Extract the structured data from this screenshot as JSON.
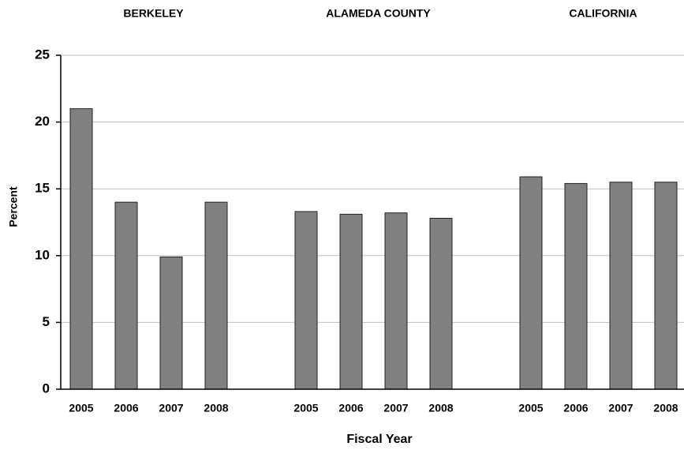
{
  "chart_data": {
    "type": "bar",
    "y_label": "Percent",
    "x_label": "Fiscal Year",
    "groups": [
      {
        "name": "BERKELEY",
        "categories": [
          "2005",
          "2006",
          "2007",
          "2008"
        ],
        "values": [
          21,
          14,
          9.9,
          14
        ]
      },
      {
        "name": "ALAMEDA COUNTY",
        "categories": [
          "2005",
          "2006",
          "2007",
          "2008"
        ],
        "values": [
          13.3,
          13.1,
          13.2,
          12.8
        ]
      },
      {
        "name": "CALIFORNIA",
        "categories": [
          "2005",
          "2006",
          "2007",
          "2008"
        ],
        "values": [
          15.9,
          15.4,
          15.5,
          15.5
        ]
      }
    ],
    "color": "#808080",
    "ylim": [
      0,
      25
    ],
    "yticks": [
      0,
      5,
      10,
      15,
      20,
      25
    ],
    "grid": true
  }
}
